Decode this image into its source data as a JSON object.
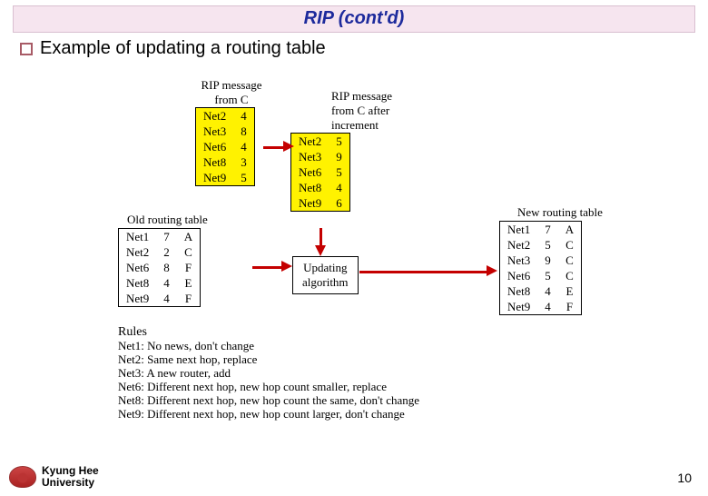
{
  "title": "RIP (cont'd)",
  "bullet": "Example of updating a routing table",
  "labels": {
    "rip_from_c_l1": "RIP message",
    "rip_from_c_l2": "from C",
    "rip_inc_l1": "RIP message",
    "rip_inc_l2": "from C after",
    "rip_inc_l3": "increment",
    "old_table": "Old routing table",
    "new_table": "New routing table",
    "algo_l1": "Updating",
    "algo_l2": "algorithm",
    "rules_h": "Rules"
  },
  "msg_from_c": {
    "rows": [
      [
        "Net2",
        "4"
      ],
      [
        "Net3",
        "8"
      ],
      [
        "Net6",
        "4"
      ],
      [
        "Net8",
        "3"
      ],
      [
        "Net9",
        "5"
      ]
    ]
  },
  "msg_inc": {
    "rows": [
      [
        "Net2",
        "5"
      ],
      [
        "Net3",
        "9"
      ],
      [
        "Net6",
        "5"
      ],
      [
        "Net8",
        "4"
      ],
      [
        "Net9",
        "6"
      ]
    ]
  },
  "old_table": {
    "rows": [
      [
        "Net1",
        "7",
        "A"
      ],
      [
        "Net2",
        "2",
        "C"
      ],
      [
        "Net6",
        "8",
        "F"
      ],
      [
        "Net8",
        "4",
        "E"
      ],
      [
        "Net9",
        "4",
        "F"
      ]
    ]
  },
  "new_table": {
    "rows": [
      [
        "Net1",
        "7",
        "A"
      ],
      [
        "Net2",
        "5",
        "C"
      ],
      [
        "Net3",
        "9",
        "C"
      ],
      [
        "Net6",
        "5",
        "C"
      ],
      [
        "Net8",
        "4",
        "E"
      ],
      [
        "Net9",
        "4",
        "F"
      ]
    ]
  },
  "rules": [
    "Net1: No news, don't change",
    "Net2: Same next hop, replace",
    "Net3: A new router, add",
    "Net6: Different next hop, new hop count smaller, replace",
    "Net8: Different next hop, new hop count the same, don't change",
    "Net9: Different next hop, new hop count larger, don't change"
  ],
  "footer": {
    "l1": "Kyung Hee",
    "l2": "University"
  },
  "pagenum": "10",
  "style": {
    "title_bg": "#f6e5ef",
    "title_color": "#1d2a9c",
    "bullet_border": "#a85b66",
    "yellow": "#fff200",
    "arrow": "#c40000"
  }
}
